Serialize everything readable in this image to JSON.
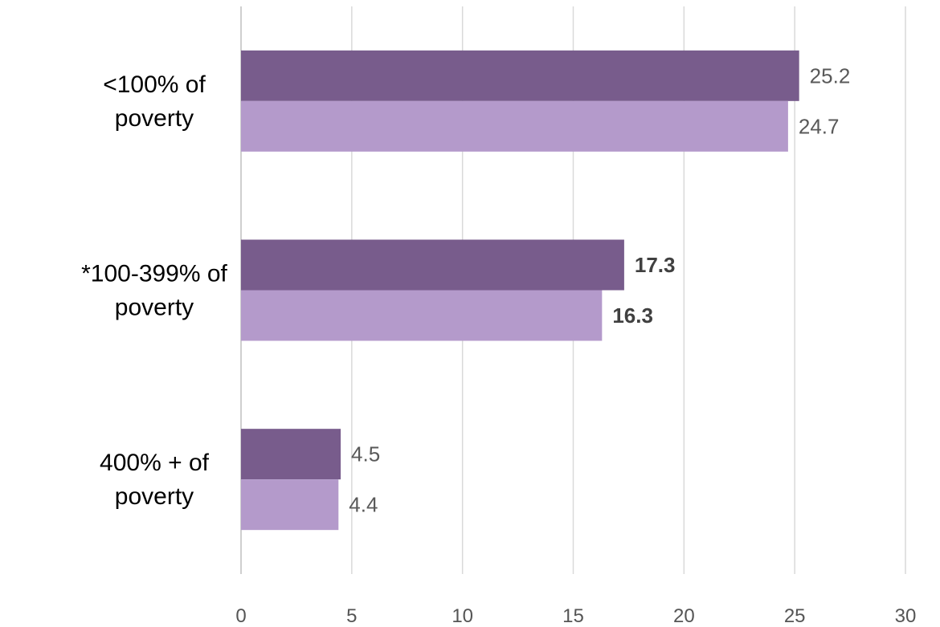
{
  "chart_data": {
    "type": "bar",
    "orientation": "horizontal",
    "title": "",
    "xlabel": "",
    "ylabel": "",
    "xlim": [
      0,
      30
    ],
    "x_ticks": [
      "0",
      "5",
      "10",
      "15",
      "20",
      "25",
      "30"
    ],
    "grid": "vertical",
    "legend": "none",
    "categories": [
      {
        "lines": [
          "<100% of",
          "poverty"
        ]
      },
      {
        "lines": [
          "*100-399% of",
          "poverty"
        ]
      },
      {
        "lines": [
          "400% + of",
          "poverty"
        ]
      }
    ],
    "series": [
      {
        "color": "#785C8C",
        "values": [
          25.2,
          17.3,
          4.5
        ],
        "labels": [
          "25.2",
          "17.3",
          "4.5"
        ],
        "bold": [
          false,
          true,
          false
        ]
      },
      {
        "color": "#B49ACB",
        "values": [
          24.7,
          16.3,
          4.4
        ],
        "labels": [
          "24.7",
          "16.3",
          "4.4"
        ],
        "bold": [
          false,
          true,
          false
        ]
      }
    ]
  }
}
